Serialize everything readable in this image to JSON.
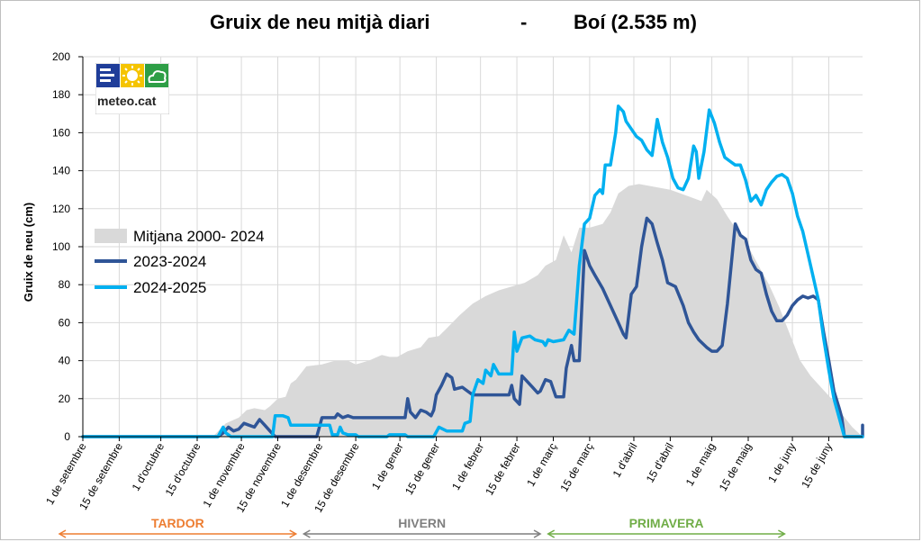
{
  "chart_data": {
    "type": "area",
    "title_left": "Gruix de neu mitjà diari",
    "title_sep": "-",
    "title_right": "Boí (2.535 m)",
    "ylabel": "Gruix de neu (cm)",
    "ylim": [
      0,
      200
    ],
    "yticks": [
      0,
      20,
      40,
      60,
      80,
      100,
      120,
      140,
      160,
      180,
      200
    ],
    "xlim": [
      0,
      300
    ],
    "xticks": [
      {
        "day": 0,
        "label": "1 de setembre"
      },
      {
        "day": 14,
        "label": "15 de setembre"
      },
      {
        "day": 30,
        "label": "1 d'octubre"
      },
      {
        "day": 44,
        "label": "15 d'octubre"
      },
      {
        "day": 61,
        "label": "1 de novembre"
      },
      {
        "day": 75,
        "label": "15 de novembre"
      },
      {
        "day": 91,
        "label": "1 de desembre"
      },
      {
        "day": 105,
        "label": "15 de desembre"
      },
      {
        "day": 122,
        "label": "1 de gener"
      },
      {
        "day": 136,
        "label": "15 de gener"
      },
      {
        "day": 153,
        "label": "1 de febrer"
      },
      {
        "day": 167,
        "label": "15 de febrer"
      },
      {
        "day": 181,
        "label": "1 de març"
      },
      {
        "day": 195,
        "label": "15 de març"
      },
      {
        "day": 212,
        "label": "1 d'abril"
      },
      {
        "day": 226,
        "label": "15 d'abril"
      },
      {
        "day": 242,
        "label": "1 de maig"
      },
      {
        "day": 256,
        "label": "15 de maig"
      },
      {
        "day": 273,
        "label": "1 de juny"
      },
      {
        "day": 287,
        "label": "15 de juny"
      }
    ],
    "seasons": [
      {
        "label": "TARDOR",
        "from_day": -9,
        "to_day": 82,
        "color": "#ed7d31"
      },
      {
        "label": "HIVERN",
        "from_day": 85,
        "to_day": 176,
        "color": "#7f7f7f"
      },
      {
        "label": "PRIMAVERA",
        "from_day": 179,
        "to_day": 270,
        "color": "#70ad47"
      }
    ],
    "series": [
      {
        "name": "Mitjana  2000- 2024",
        "kind": "area",
        "color": "#d9d9d9",
        "points": [
          [
            0,
            0
          ],
          [
            50,
            0
          ],
          [
            55,
            7
          ],
          [
            60,
            10
          ],
          [
            63,
            14
          ],
          [
            66,
            15
          ],
          [
            70,
            14
          ],
          [
            72,
            16
          ],
          [
            75,
            20
          ],
          [
            78,
            21
          ],
          [
            80,
            28
          ],
          [
            82,
            30
          ],
          [
            86,
            37
          ],
          [
            92,
            38
          ],
          [
            97,
            40
          ],
          [
            102,
            40
          ],
          [
            105,
            38
          ],
          [
            110,
            40
          ],
          [
            115,
            43
          ],
          [
            118,
            42
          ],
          [
            121,
            42
          ],
          [
            125,
            45
          ],
          [
            130,
            47
          ],
          [
            133,
            52
          ],
          [
            137,
            53
          ],
          [
            140,
            57
          ],
          [
            145,
            64
          ],
          [
            150,
            70
          ],
          [
            155,
            74
          ],
          [
            160,
            77
          ],
          [
            165,
            79
          ],
          [
            170,
            81
          ],
          [
            175,
            85
          ],
          [
            178,
            90
          ],
          [
            182,
            93
          ],
          [
            185,
            106
          ],
          [
            188,
            97
          ],
          [
            191,
            110
          ],
          [
            195,
            110
          ],
          [
            200,
            112
          ],
          [
            203,
            118
          ],
          [
            206,
            128
          ],
          [
            210,
            132
          ],
          [
            214,
            133
          ],
          [
            218,
            132
          ],
          [
            222,
            131
          ],
          [
            226,
            130
          ],
          [
            230,
            128
          ],
          [
            234,
            126
          ],
          [
            238,
            124
          ],
          [
            240,
            130
          ],
          [
            244,
            125
          ],
          [
            248,
            116
          ],
          [
            252,
            108
          ],
          [
            256,
            100
          ],
          [
            260,
            90
          ],
          [
            264,
            80
          ],
          [
            268,
            68
          ],
          [
            272,
            54
          ],
          [
            276,
            40
          ],
          [
            280,
            32
          ],
          [
            284,
            26
          ],
          [
            288,
            20
          ],
          [
            292,
            12
          ],
          [
            296,
            5
          ],
          [
            300,
            0
          ]
        ]
      },
      {
        "name": "2023-2024",
        "kind": "line",
        "color": "#2f5597",
        "points": [
          [
            0,
            0
          ],
          [
            52,
            0
          ],
          [
            54,
            2
          ],
          [
            56,
            5
          ],
          [
            58,
            3
          ],
          [
            60,
            4
          ],
          [
            62,
            7
          ],
          [
            64,
            6
          ],
          [
            66,
            5
          ],
          [
            68,
            9
          ],
          [
            70,
            6
          ],
          [
            72,
            3
          ],
          [
            74,
            0
          ],
          [
            90,
            0
          ],
          [
            92,
            10
          ],
          [
            97,
            10
          ],
          [
            98,
            12
          ],
          [
            100,
            10
          ],
          [
            102,
            11
          ],
          [
            104,
            10
          ],
          [
            124,
            10
          ],
          [
            125,
            20
          ],
          [
            126,
            13
          ],
          [
            128,
            10
          ],
          [
            130,
            14
          ],
          [
            132,
            13
          ],
          [
            134,
            11
          ],
          [
            135,
            14
          ],
          [
            136,
            22
          ],
          [
            138,
            27
          ],
          [
            140,
            33
          ],
          [
            142,
            31
          ],
          [
            143,
            25
          ],
          [
            146,
            26
          ],
          [
            148,
            24
          ],
          [
            150,
            22
          ],
          [
            164,
            22
          ],
          [
            165,
            27
          ],
          [
            166,
            20
          ],
          [
            168,
            17
          ],
          [
            169,
            32
          ],
          [
            171,
            29
          ],
          [
            173,
            26
          ],
          [
            175,
            23
          ],
          [
            176,
            24
          ],
          [
            178,
            30
          ],
          [
            180,
            29
          ],
          [
            182,
            21
          ],
          [
            185,
            21
          ],
          [
            186,
            36
          ],
          [
            188,
            48
          ],
          [
            189,
            40
          ],
          [
            191,
            40
          ],
          [
            193,
            98
          ],
          [
            195,
            90
          ],
          [
            197,
            85
          ],
          [
            200,
            78
          ],
          [
            203,
            69
          ],
          [
            206,
            60
          ],
          [
            208,
            54
          ],
          [
            209,
            52
          ],
          [
            211,
            75
          ],
          [
            213,
            79
          ],
          [
            215,
            100
          ],
          [
            217,
            115
          ],
          [
            219,
            112
          ],
          [
            221,
            102
          ],
          [
            223,
            93
          ],
          [
            225,
            81
          ],
          [
            228,
            79
          ],
          [
            231,
            69
          ],
          [
            233,
            60
          ],
          [
            235,
            55
          ],
          [
            237,
            51
          ],
          [
            240,
            47
          ],
          [
            242,
            45
          ],
          [
            244,
            45
          ],
          [
            246,
            48
          ],
          [
            248,
            70
          ],
          [
            251,
            112
          ],
          [
            253,
            106
          ],
          [
            255,
            104
          ],
          [
            257,
            93
          ],
          [
            259,
            88
          ],
          [
            261,
            86
          ],
          [
            263,
            75
          ],
          [
            265,
            66
          ],
          [
            267,
            61
          ],
          [
            269,
            61
          ],
          [
            271,
            64
          ],
          [
            273,
            69
          ],
          [
            275,
            72
          ],
          [
            277,
            74
          ],
          [
            279,
            73
          ],
          [
            281,
            74
          ],
          [
            283,
            72
          ],
          [
            285,
            55
          ],
          [
            287,
            40
          ],
          [
            289,
            24
          ],
          [
            291,
            15
          ],
          [
            292,
            10
          ],
          [
            293,
            0
          ],
          [
            301,
            0
          ],
          [
            302,
            5
          ],
          [
            303,
            6
          ],
          [
            304,
            0
          ],
          [
            330,
            0
          ]
        ]
      },
      {
        "name": "2024-2025",
        "kind": "line",
        "color": "#00b0f0",
        "points": [
          [
            0,
            0
          ],
          [
            52,
            0
          ],
          [
            54,
            5
          ],
          [
            55,
            2
          ],
          [
            57,
            0
          ],
          [
            73,
            0
          ],
          [
            74,
            11
          ],
          [
            77,
            11
          ],
          [
            79,
            10
          ],
          [
            80,
            6
          ],
          [
            95,
            6
          ],
          [
            96,
            1
          ],
          [
            98,
            1
          ],
          [
            99,
            5
          ],
          [
            100,
            2
          ],
          [
            102,
            1
          ],
          [
            105,
            1
          ],
          [
            106,
            0
          ],
          [
            117,
            0
          ],
          [
            118,
            1
          ],
          [
            124,
            1
          ],
          [
            125,
            0
          ],
          [
            135,
            0
          ],
          [
            137,
            5
          ],
          [
            140,
            3
          ],
          [
            146,
            3
          ],
          [
            147,
            7
          ],
          [
            149,
            8
          ],
          [
            150,
            22
          ],
          [
            152,
            30
          ],
          [
            154,
            28
          ],
          [
            155,
            35
          ],
          [
            157,
            32
          ],
          [
            158,
            38
          ],
          [
            160,
            33
          ],
          [
            165,
            33
          ],
          [
            166,
            55
          ],
          [
            167,
            45
          ],
          [
            169,
            52
          ],
          [
            172,
            53
          ],
          [
            174,
            51
          ],
          [
            177,
            50
          ],
          [
            178,
            48
          ],
          [
            179,
            51
          ],
          [
            181,
            50
          ],
          [
            185,
            51
          ],
          [
            187,
            56
          ],
          [
            189,
            54
          ],
          [
            191,
            90
          ],
          [
            193,
            112
          ],
          [
            195,
            115
          ],
          [
            197,
            127
          ],
          [
            199,
            130
          ],
          [
            200,
            128
          ],
          [
            201,
            143
          ],
          [
            203,
            143
          ],
          [
            205,
            160
          ],
          [
            206,
            174
          ],
          [
            208,
            171
          ],
          [
            209,
            166
          ],
          [
            211,
            162
          ],
          [
            213,
            158
          ],
          [
            215,
            156
          ],
          [
            217,
            151
          ],
          [
            219,
            148
          ],
          [
            221,
            167
          ],
          [
            223,
            155
          ],
          [
            225,
            147
          ],
          [
            227,
            136
          ],
          [
            229,
            131
          ],
          [
            231,
            130
          ],
          [
            233,
            136
          ],
          [
            235,
            153
          ],
          [
            236,
            150
          ],
          [
            237,
            136
          ],
          [
            239,
            150
          ],
          [
            241,
            172
          ],
          [
            243,
            165
          ],
          [
            245,
            155
          ],
          [
            247,
            147
          ],
          [
            249,
            145
          ],
          [
            251,
            143
          ],
          [
            253,
            143
          ],
          [
            255,
            135
          ],
          [
            257,
            124
          ],
          [
            259,
            127
          ],
          [
            261,
            122
          ],
          [
            263,
            130
          ],
          [
            265,
            134
          ],
          [
            267,
            137
          ],
          [
            269,
            138
          ],
          [
            271,
            136
          ],
          [
            273,
            128
          ],
          [
            275,
            116
          ],
          [
            277,
            108
          ],
          [
            279,
            96
          ],
          [
            281,
            84
          ],
          [
            283,
            72
          ],
          [
            285,
            52
          ],
          [
            287,
            35
          ],
          [
            289,
            20
          ],
          [
            291,
            10
          ],
          [
            293,
            0
          ],
          [
            330,
            0
          ]
        ]
      }
    ]
  },
  "logo": {
    "text": "meteo.cat"
  }
}
